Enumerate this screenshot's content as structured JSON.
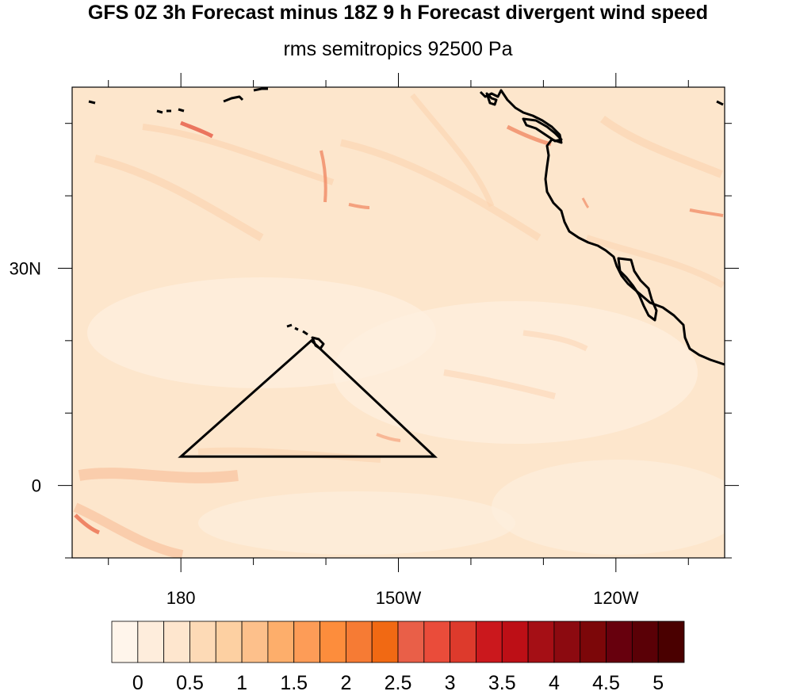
{
  "title": "GFS 0Z 3h Forecast minus 18Z 9 h Forecast divergent wind speed",
  "subtitle": "rms semitropics 92500 Pa",
  "map": {
    "lon_range": [
      -195,
      -105
    ],
    "lat_range": [
      -10,
      55
    ],
    "x_ticks": [
      {
        "lon": -180,
        "label": "180"
      },
      {
        "lon": -150,
        "label": "150W"
      },
      {
        "lon": -120,
        "label": "120W"
      }
    ],
    "y_ticks": [
      {
        "lat": 30,
        "label": "30N"
      },
      {
        "lat": 0,
        "label": "0"
      }
    ],
    "triangle": [
      [
        -180,
        4
      ],
      [
        -162,
        20
      ],
      [
        -145,
        4
      ]
    ],
    "background_color": "#fde6cc"
  },
  "colorbar": {
    "labels": [
      "0",
      "0.5",
      "1",
      "1.5",
      "2",
      "2.5",
      "3",
      "3.5",
      "4",
      "4.5",
      "5"
    ],
    "colors": [
      "#fff5eb",
      "#feeddc",
      "#fee6ce",
      "#fddab6",
      "#fdd0a2",
      "#fdc08b",
      "#fdae6b",
      "#fd9c57",
      "#fd8d3c",
      "#f67b34",
      "#f16913",
      "#e95f48",
      "#ea4c3a",
      "#dd3a2c",
      "#cb181d",
      "#bd0f16",
      "#a50f15",
      "#8c0a10",
      "#7c0709",
      "#67000d",
      "#5a0006",
      "#4a0000"
    ]
  }
}
